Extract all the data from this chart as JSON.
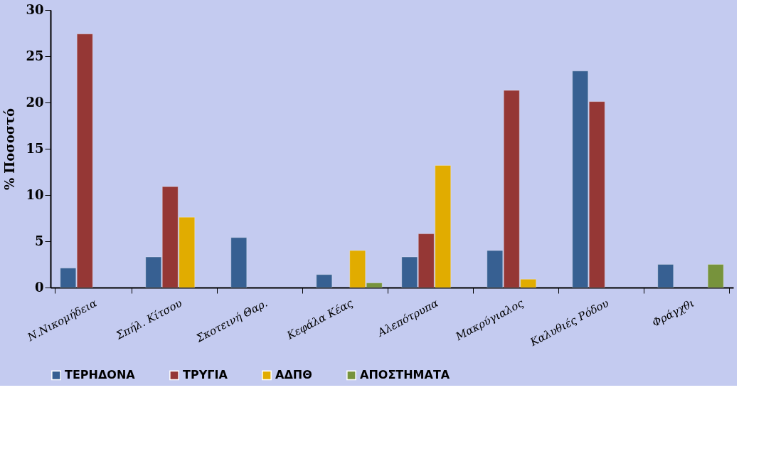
{
  "chart_data": {
    "type": "bar",
    "ylabel": "% Ποσοστό",
    "categories": [
      "Ν.Νικομήδεια",
      "Σπήλ. Κίτσου",
      "Σκοτεινή  Θαρ.",
      "Κεφάλα Κέας",
      "Αλεπότρυπα",
      "Μακρύγιαλος",
      "Καλυθιές Ρόδου",
      "Φράγχθι"
    ],
    "series": [
      {
        "name": "ΤΕΡΗΔΟΝΑ",
        "color": "#376092",
        "values": [
          2.1,
          3.3,
          5.4,
          1.4,
          3.3,
          4.0,
          23.4,
          2.5
        ]
      },
      {
        "name": "ΤΡΥΓΙΑ",
        "color": "#953735",
        "values": [
          27.4,
          10.9,
          null,
          null,
          5.8,
          21.3,
          20.1,
          null
        ]
      },
      {
        "name": "ΑΔΠΘ",
        "color": "#e1ac00",
        "values": [
          null,
          7.6,
          null,
          4.0,
          13.2,
          0.9,
          null,
          null
        ]
      },
      {
        "name": "ΑΠΟΣΤΗΜΑΤΑ",
        "color": "#77933c",
        "values": [
          null,
          null,
          null,
          0.5,
          null,
          null,
          null,
          2.5
        ]
      }
    ],
    "ylim": [
      0,
      30
    ],
    "yticks": [
      0,
      5,
      10,
      15,
      20,
      25,
      30
    ],
    "grid": false,
    "legend": "bottom"
  }
}
